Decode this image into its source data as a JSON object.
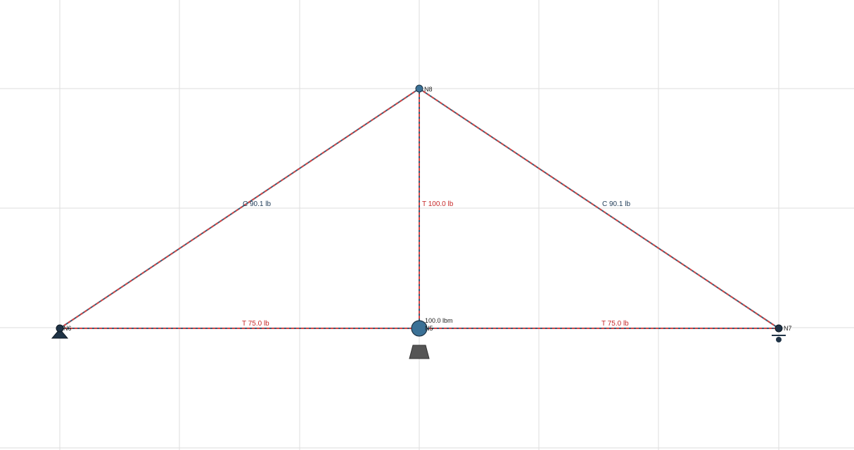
{
  "colors": {
    "grid": "#dddddd",
    "member": "#3a5f78",
    "member_dash": "#d64545",
    "tension_text": "#c62828",
    "compression_text": "#1f3b57",
    "node": "#3b7196",
    "support": "#555555"
  },
  "nodes": [
    {
      "id": "n6",
      "label": "N6",
      "kind": "pin-support"
    },
    {
      "id": "n5",
      "label": "N5",
      "kind": "fixed-support"
    },
    {
      "id": "n7",
      "label": "N7",
      "kind": "roller-support"
    },
    {
      "id": "n8",
      "label": "N8",
      "kind": "free"
    }
  ],
  "members": [
    {
      "id": "m-n6-n8",
      "from": "n6",
      "to": "n8",
      "type": "C",
      "force": "C 90.1 lb"
    },
    {
      "id": "m-n5-n8",
      "from": "n5",
      "to": "n8",
      "type": "T",
      "force": "T 100.0 lb"
    },
    {
      "id": "m-n8-n7",
      "from": "n8",
      "to": "n7",
      "type": "C",
      "force": "C 90.1 lb"
    },
    {
      "id": "m-n6-n5",
      "from": "n6",
      "to": "n5",
      "type": "T",
      "force": "T 75.0 lb"
    },
    {
      "id": "m-n5-n7",
      "from": "n5",
      "to": "n7",
      "type": "T",
      "force": "T 75.0 lb"
    }
  ],
  "load": {
    "node": "n5",
    "label": "100.0 lbm"
  }
}
